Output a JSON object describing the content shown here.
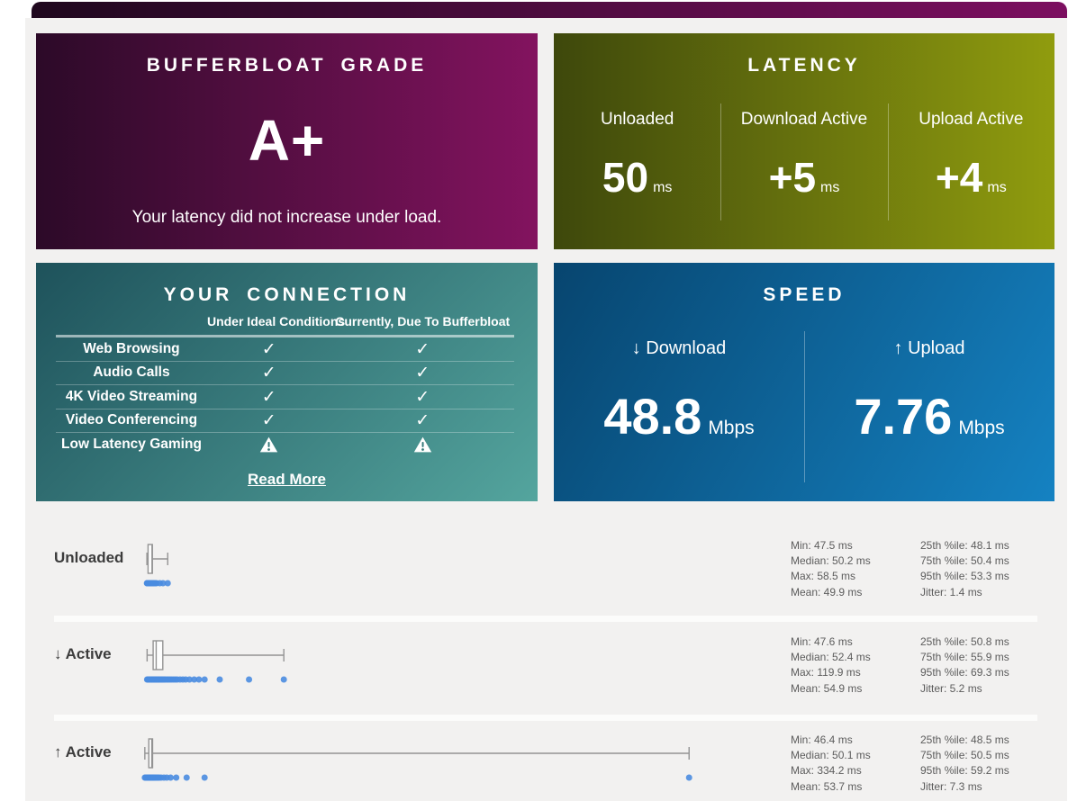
{
  "theme": {
    "page_bg": "#ffffff",
    "panel_bg": "#f2f1f0",
    "topbar_gradient": [
      "#1f081e",
      "#7c0f60"
    ],
    "grade_gradient": [
      "#2c0a28",
      "#83135f"
    ],
    "latency_gradient": [
      "#3e480c",
      "#909c0e"
    ],
    "connection_gradient": [
      "#1e525b",
      "#54a59e"
    ],
    "speed_gradient": [
      "#07456f",
      "#1582c2"
    ],
    "dot_color": "#4a8ce0",
    "box_stroke": "#939393",
    "stats_text_color": "#5c5c5c",
    "row_label_color": "#3c3c3c"
  },
  "grade_card": {
    "title": "BUFFERBLOAT GRADE",
    "grade": "A+",
    "subtitle": "Your latency did not increase under load."
  },
  "latency_card": {
    "title": "LATENCY",
    "columns": [
      {
        "label": "Unloaded",
        "value": "50",
        "unit": "ms"
      },
      {
        "label": "Download Active",
        "value": "+5",
        "unit": "ms"
      },
      {
        "label": "Upload Active",
        "value": "+4",
        "unit": "ms"
      }
    ]
  },
  "connection_card": {
    "title": "YOUR CONNECTION",
    "headers": [
      "Under Ideal Conditions",
      "Currently, Due To Bufferbloat"
    ],
    "rows": [
      {
        "label": "Web Browsing",
        "ideal": "check",
        "current": "check"
      },
      {
        "label": "Audio Calls",
        "ideal": "check",
        "current": "check"
      },
      {
        "label": "4K Video Streaming",
        "ideal": "check",
        "current": "check"
      },
      {
        "label": "Video Conferencing",
        "ideal": "check",
        "current": "check"
      },
      {
        "label": "Low Latency Gaming",
        "ideal": "warning",
        "current": "warning"
      }
    ],
    "read_more": "Read More"
  },
  "speed_card": {
    "title": "SPEED",
    "columns": [
      {
        "label": "↓ Download",
        "value": "48.8",
        "unit": "Mbps"
      },
      {
        "label": "↑ Upload",
        "value": "7.76",
        "unit": "Mbps"
      }
    ]
  },
  "chart_data": {
    "type": "boxplot",
    "x_unit": "ms",
    "x_range": [
      44,
      345
    ],
    "rows": [
      {
        "label": "Unloaded",
        "box": {
          "min": 47.5,
          "q1": 48.1,
          "median": 50.2,
          "q3": 50.4,
          "max": 58.5
        },
        "samples": [
          47.5,
          47.7,
          47.9,
          48.0,
          48.1,
          48.2,
          48.4,
          48.6,
          48.8,
          49.0,
          49.2,
          49.4,
          49.6,
          49.8,
          50.0,
          50.2,
          50.4,
          50.7,
          51.0,
          51.4,
          52.0,
          52.6,
          54.3,
          56.0,
          58.5
        ],
        "stats": [
          [
            "Min: 47.5 ms",
            "25th %ile: 48.1 ms"
          ],
          [
            "Median: 50.2 ms",
            "75th %ile: 50.4 ms"
          ],
          [
            "Max: 58.5 ms",
            "95th %ile: 53.3 ms"
          ],
          [
            "Mean: 49.9 ms",
            "Jitter: 1.4 ms"
          ]
        ]
      },
      {
        "label": "↓ Active",
        "box": {
          "min": 47.6,
          "q1": 50.8,
          "median": 52.4,
          "q3": 55.9,
          "max": 119.9
        },
        "samples": [
          47.6,
          48.0,
          48.4,
          48.8,
          49.2,
          49.6,
          50.0,
          50.4,
          50.8,
          51.2,
          51.6,
          52.0,
          52.4,
          52.8,
          53.2,
          53.6,
          54.0,
          54.5,
          55.0,
          55.5,
          56.0,
          56.6,
          57.2,
          58.0,
          58.8,
          59.6,
          60.5,
          61.5,
          62.5,
          63.5,
          65.0,
          66.5,
          68.0,
          70.0,
          72.5,
          75.0,
          78.0,
          86.0,
          101.5,
          119.9
        ],
        "stats": [
          [
            "Min: 47.6 ms",
            "25th %ile: 50.8 ms"
          ],
          [
            "Median: 52.4 ms",
            "75th %ile: 55.9 ms"
          ],
          [
            "Max: 119.9 ms",
            "95th %ile: 69.3 ms"
          ],
          [
            "Mean: 54.9 ms",
            "Jitter: 5.2 ms"
          ]
        ]
      },
      {
        "label": "↑ Active",
        "box": {
          "min": 46.4,
          "q1": 48.5,
          "median": 50.1,
          "q3": 50.5,
          "max": 334.2
        },
        "samples": [
          46.4,
          46.8,
          47.2,
          47.6,
          48.0,
          48.3,
          48.6,
          48.9,
          49.2,
          49.5,
          49.8,
          50.1,
          50.4,
          50.7,
          51.0,
          51.4,
          51.8,
          52.3,
          52.8,
          53.4,
          54.0,
          55.0,
          56.5,
          58.0,
          60.0,
          63.0,
          68.5,
          78.0,
          334.2
        ],
        "stats": [
          [
            "Min: 46.4 ms",
            "25th %ile: 48.5 ms"
          ],
          [
            "Median: 50.1 ms",
            "75th %ile: 50.5 ms"
          ],
          [
            "Max: 334.2 ms",
            "95th %ile: 59.2 ms"
          ],
          [
            "Mean: 53.7 ms",
            "Jitter: 7.3 ms"
          ]
        ]
      }
    ]
  }
}
